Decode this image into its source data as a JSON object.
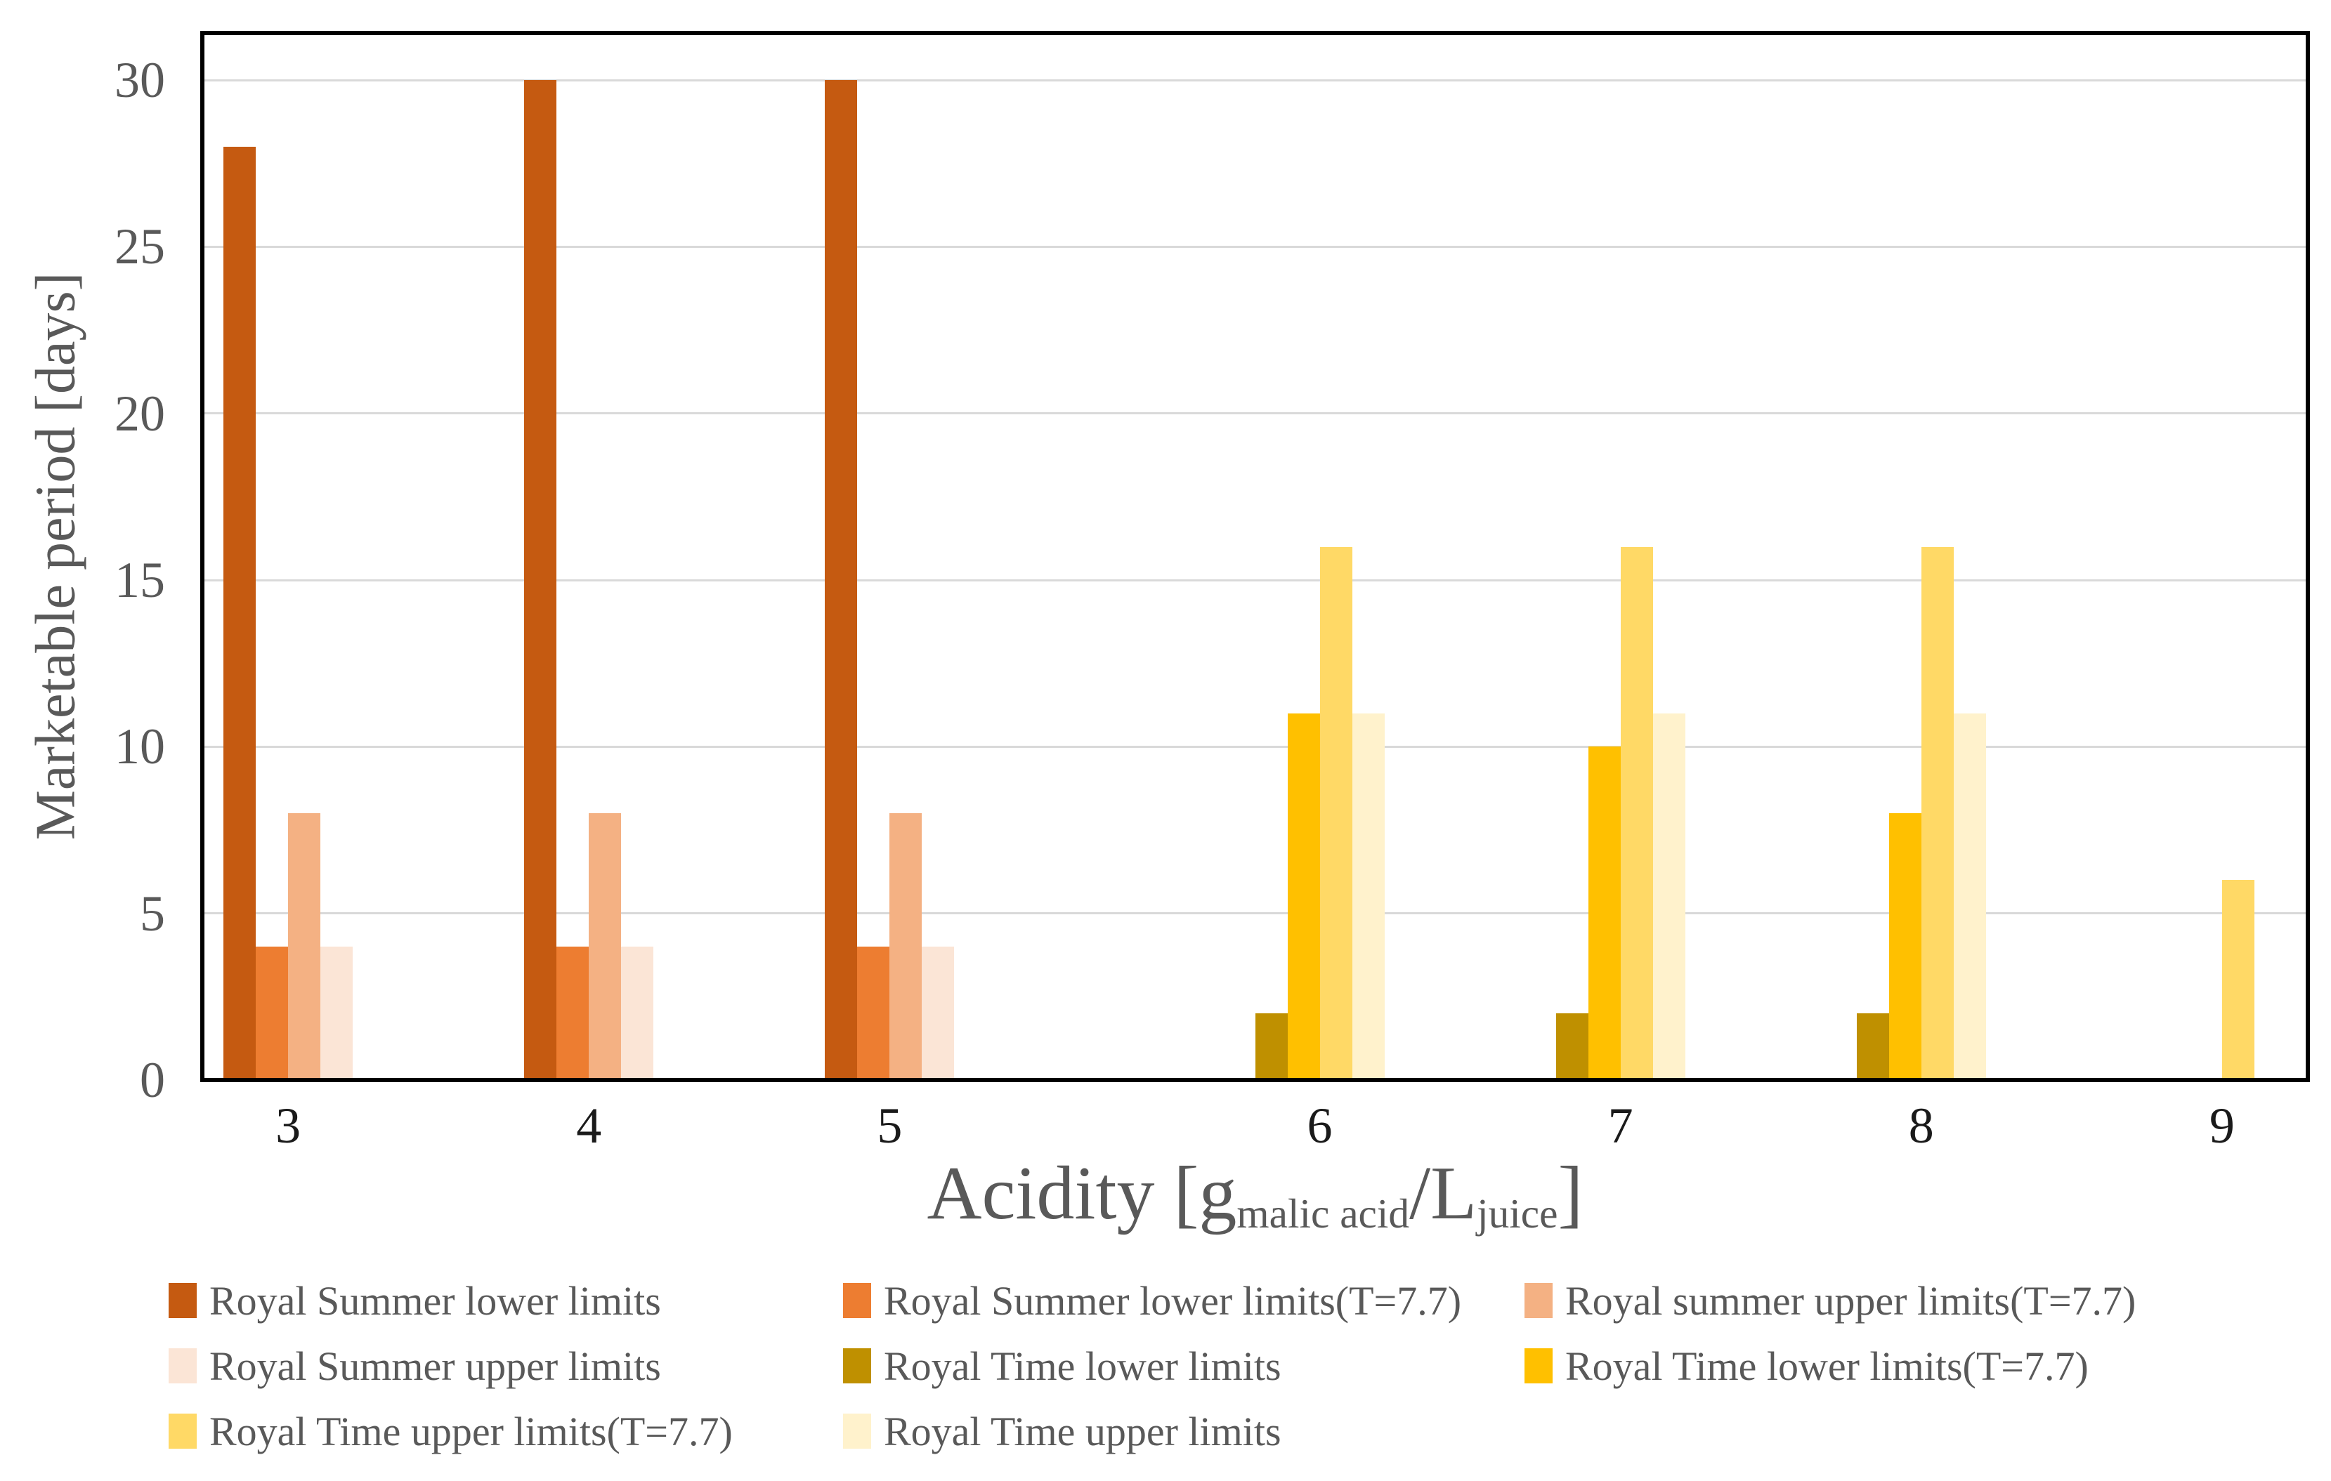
{
  "figure": {
    "y_axis_title": "Marketable period [days]",
    "x_axis_title_parts": {
      "prefix": "Acidity [g",
      "sub_1": "malic acid",
      "middle": "/L",
      "sub_2": "juice",
      "suffix": "]"
    }
  },
  "chart_data": {
    "type": "bar",
    "title": "",
    "xlabel": "Acidity [g_malic acid/L_juice]",
    "ylabel": "Marketable period [days]",
    "ylim": [
      0,
      30
    ],
    "y_tick_step": 5,
    "y_tick_labels": [
      "0",
      "5",
      "10",
      "15",
      "20",
      "25",
      "30"
    ],
    "grid": "horizontal-major",
    "legend_position": "bottom",
    "categories": [
      "3",
      "4",
      "5",
      "6",
      "7",
      "8",
      "9"
    ],
    "series": [
      {
        "name": "Royal Summer lower limits",
        "color": "#C55A11",
        "values": [
          28,
          30,
          30,
          0,
          0,
          0,
          0
        ]
      },
      {
        "name": "Royal Summer lower limits(T=7.7)",
        "color": "#ED7D31",
        "values": [
          4,
          4,
          4,
          0,
          0,
          0,
          0
        ]
      },
      {
        "name": "Royal summer upper limits(T=7.7)",
        "color": "#F4B183",
        "values": [
          8,
          8,
          8,
          0,
          0,
          0,
          0
        ]
      },
      {
        "name": "Royal Summer upper limits",
        "color": "#FBE5D6",
        "values": [
          4,
          4,
          4,
          0,
          0,
          0,
          0
        ]
      },
      {
        "name": "Royal Time lower limits",
        "color": "#BF9000",
        "values": [
          0,
          0,
          0,
          2,
          2,
          2,
          0
        ]
      },
      {
        "name": "Royal Time lower limits(T=7.7)",
        "color": "#FFC000",
        "values": [
          0,
          0,
          0,
          11,
          10,
          8,
          0
        ]
      },
      {
        "name": "Royal Time upper limits(T=7.7)",
        "color": "#FFD966",
        "values": [
          0,
          0,
          0,
          16,
          16,
          16,
          6
        ]
      },
      {
        "name": "Royal Time upper limits",
        "color": "#FFF2CC",
        "values": [
          0,
          0,
          0,
          11,
          11,
          11,
          0
        ]
      }
    ],
    "colors": {
      "gridline": "#D9D9D9",
      "axis": "#000000",
      "y_tick_label": "#595959",
      "x_tick_label": "#1a1a1a",
      "text": "#595959",
      "background": "#FFFFFF"
    }
  }
}
